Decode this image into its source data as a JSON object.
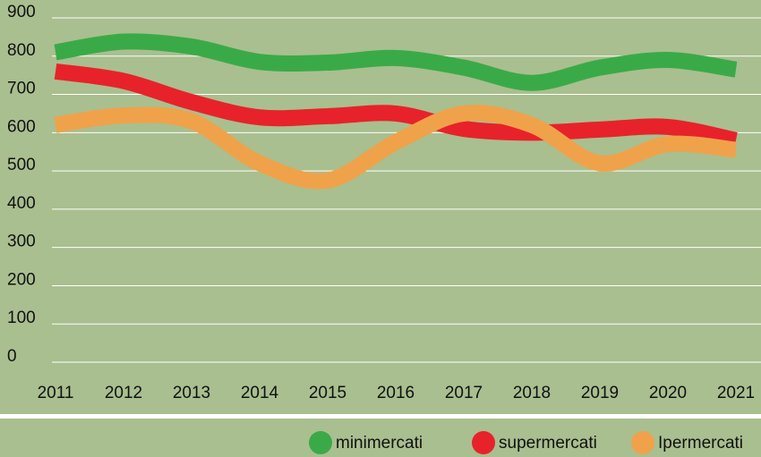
{
  "chart_data": {
    "type": "line",
    "categories": [
      "2011",
      "2012",
      "2013",
      "2014",
      "2015",
      "2016",
      "2017",
      "2018",
      "2019",
      "2020",
      "2021"
    ],
    "series": [
      {
        "name": "minimercati",
        "color": "#3aaa48",
        "values": [
          810,
          838,
          825,
          785,
          783,
          795,
          770,
          730,
          770,
          790,
          765
        ]
      },
      {
        "name": "supermercati",
        "color": "#e8222a",
        "values": [
          760,
          735,
          680,
          640,
          643,
          650,
          610,
          600,
          608,
          615,
          580
        ]
      },
      {
        "name": "Ipermercati",
        "color": "#f0a24a",
        "values": [
          620,
          645,
          630,
          520,
          475,
          575,
          650,
          620,
          520,
          570,
          555
        ]
      }
    ],
    "ylim": [
      0,
      900
    ],
    "yticks": [
      0,
      100,
      200,
      300,
      400,
      500,
      600,
      700,
      800,
      900
    ],
    "grid": true,
    "legend": "bottom-right"
  }
}
